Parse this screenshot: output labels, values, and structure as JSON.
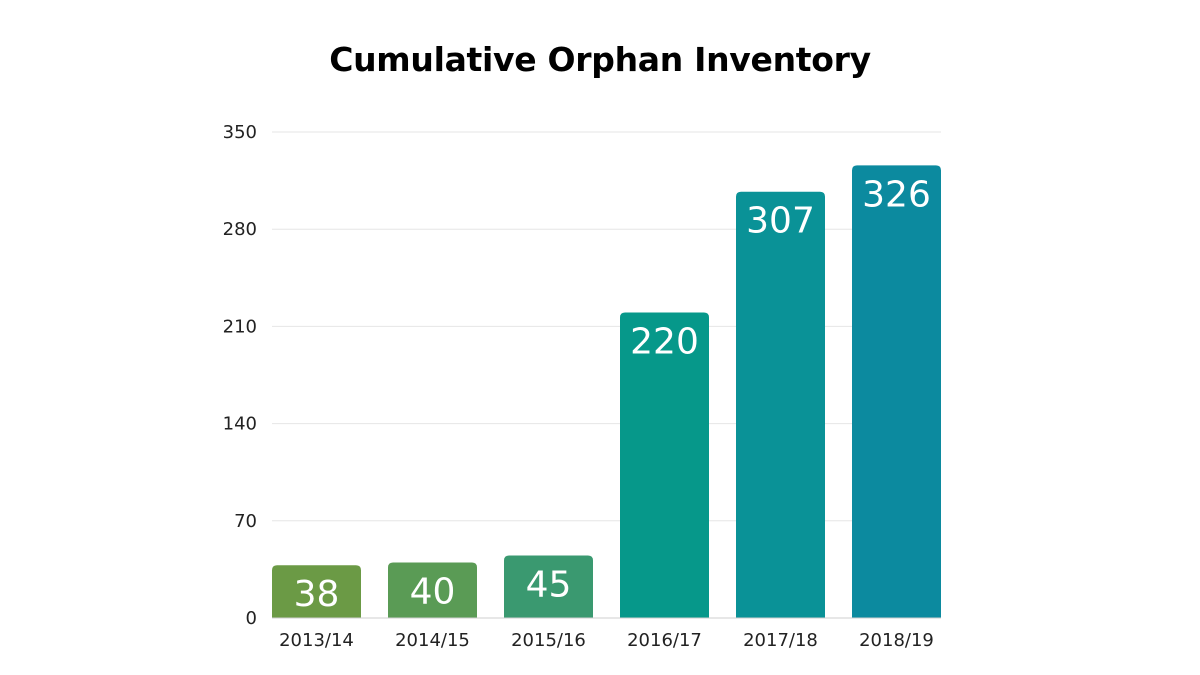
{
  "chart_data": {
    "type": "bar",
    "title": "Cumulative Orphan Inventory",
    "xlabel": "",
    "ylabel": "",
    "categories": [
      "2013/14",
      "2014/15",
      "2015/16",
      "2016/17",
      "2017/18",
      "2018/19"
    ],
    "values": [
      38,
      40,
      45,
      220,
      307,
      326
    ],
    "yticks": [
      0,
      70,
      140,
      210,
      280,
      350
    ],
    "ylim": [
      0,
      350
    ],
    "grid": true,
    "legend": "none",
    "bar_colors": [
      "#6b9a45",
      "#5a9b55",
      "#3a9970",
      "#06988a",
      "#0a9297",
      "#0c8a9f"
    ]
  }
}
